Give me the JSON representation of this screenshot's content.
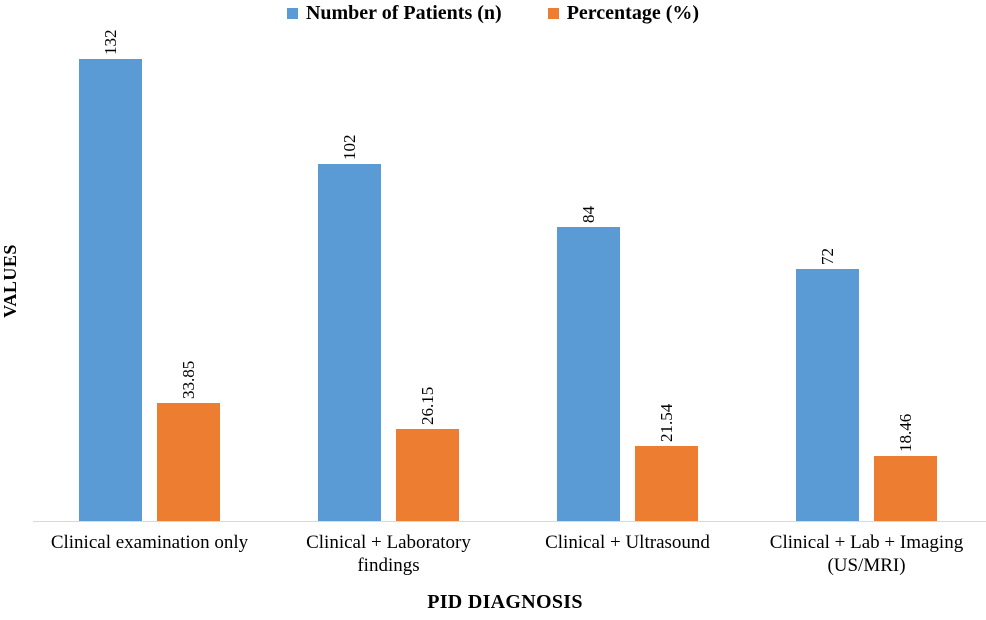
{
  "chart_data": {
    "type": "bar",
    "title": "",
    "categories": [
      "Clinical examination only",
      "Clinical + Laboratory findings",
      "Clinical + Ultrasound",
      "Clinical + Lab + Imaging (US/MRI)"
    ],
    "series": [
      {
        "name": "Number of Patients (n)",
        "color": "#5B9BD5",
        "values": [
          132,
          102,
          84,
          72
        ],
        "data_labels": [
          "132",
          "102",
          "84",
          "72"
        ]
      },
      {
        "name": "Percentage (%)",
        "color": "#ED7D31",
        "values": [
          33.85,
          26.15,
          21.54,
          18.46
        ],
        "data_labels": [
          "33.85",
          "26.15",
          "21.54",
          "18.46"
        ]
      }
    ],
    "xlabel": "PID DIAGNOSIS",
    "ylabel": "VALUES",
    "ylim": [
      0,
      140
    ],
    "grid": false,
    "y_axis_ticks_visible": false,
    "legend_position": "top",
    "data_label_rotation": -90
  }
}
